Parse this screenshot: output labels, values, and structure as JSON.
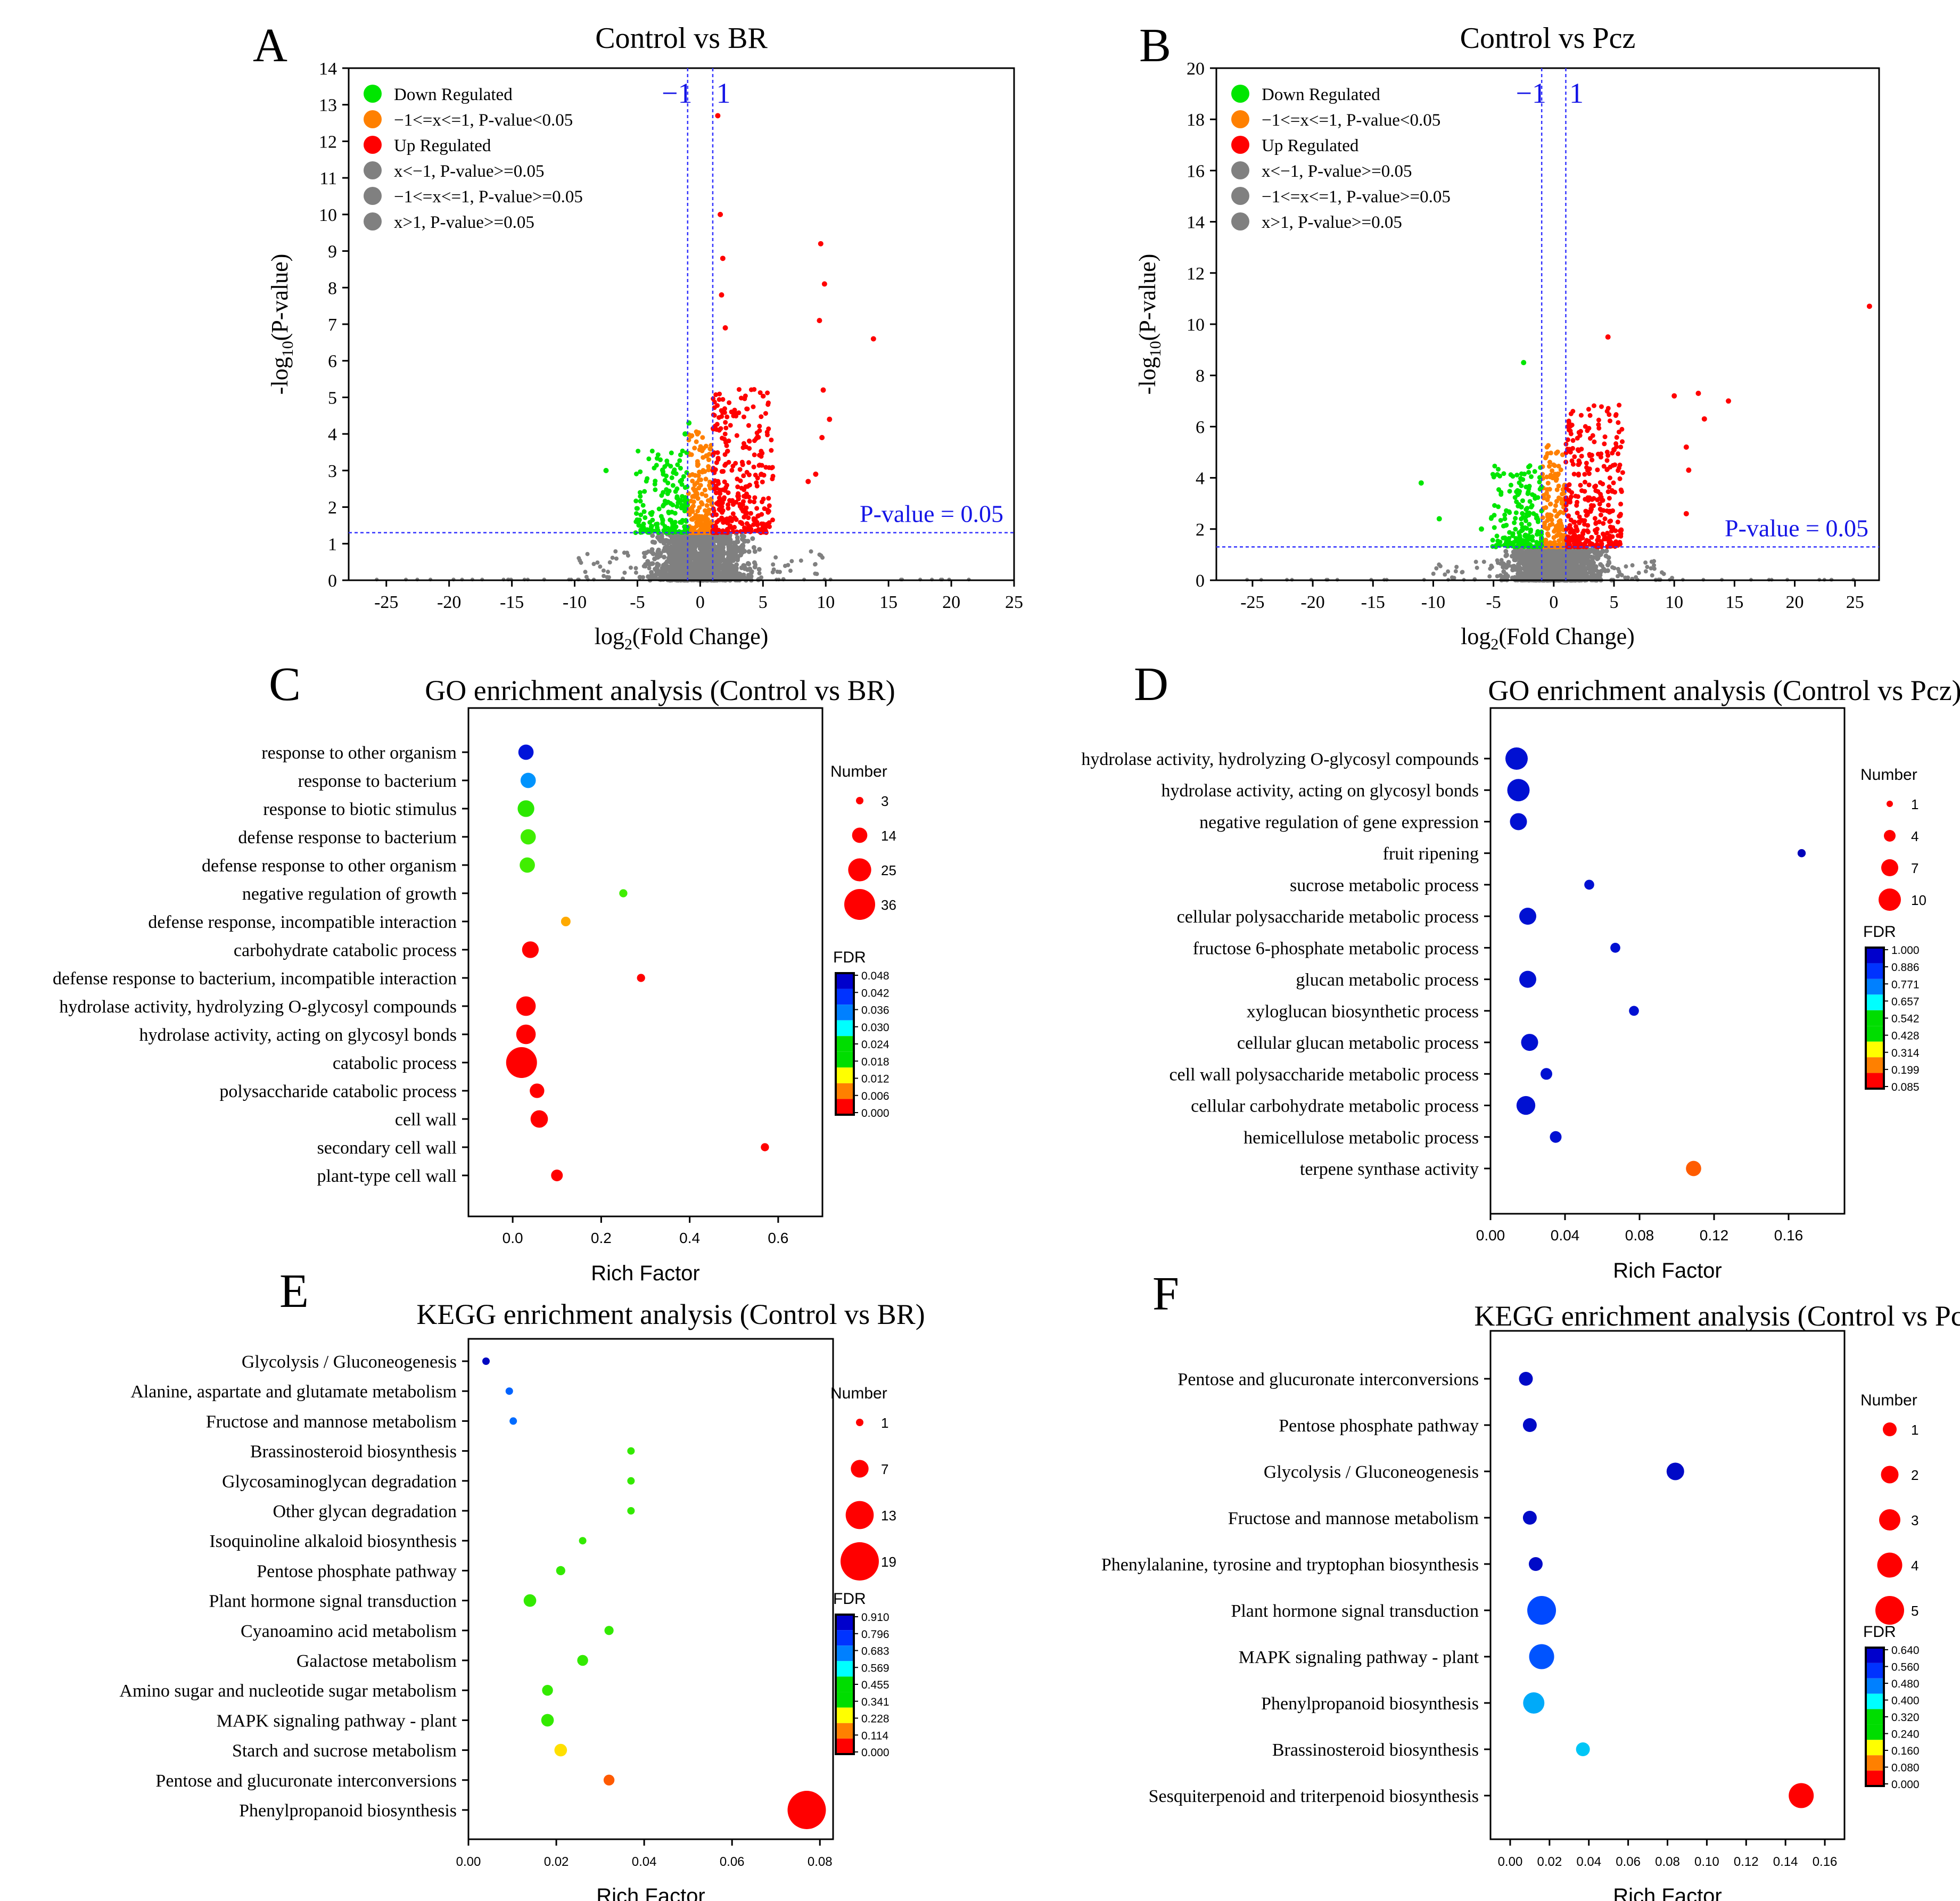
{
  "chart_data": [
    {
      "panel": "A",
      "type": "scatter",
      "title": "Control vs BR",
      "xlabel": "log2(Fold Change)",
      "ylabel": "-log10(P-value)",
      "xlim": [
        -28,
        25
      ],
      "ylim": [
        0,
        14
      ],
      "xticks": [
        -25,
        -20,
        -15,
        -10,
        -5,
        0,
        5,
        10,
        15,
        20,
        25
      ],
      "yticks": [
        0,
        1,
        2,
        3,
        4,
        5,
        6,
        7,
        8,
        9,
        10,
        11,
        12,
        13,
        14
      ],
      "vlines": [
        -1,
        1
      ],
      "vline_labels": [
        "−1",
        "1"
      ],
      "hline": 1.301,
      "hline_label": "P-value = 0.05",
      "legend_position": "top-left",
      "legend": [
        {
          "label": "Down Regulated",
          "color": "#00e600"
        },
        {
          "label": "−1<=x<=1, P-value<0.05",
          "color": "#ff8000"
        },
        {
          "label": "Up Regulated",
          "color": "#ff0000"
        },
        {
          "label": "x<−1, P-value>=0.05",
          "color": "#808080"
        },
        {
          "label": "−1<=x<=1, P-value>=0.05",
          "color": "#808080"
        },
        {
          "label": "x>1, P-value>=0.05",
          "color": "#808080"
        }
      ],
      "highlighted_points": [
        {
          "x": 1.4,
          "y": 12.7,
          "group": "up"
        },
        {
          "x": 1.6,
          "y": 10.0,
          "group": "up"
        },
        {
          "x": 9.6,
          "y": 9.2,
          "group": "up"
        },
        {
          "x": 1.8,
          "y": 8.8,
          "group": "up"
        },
        {
          "x": 9.9,
          "y": 8.1,
          "group": "up"
        },
        {
          "x": 1.7,
          "y": 7.8,
          "group": "up"
        },
        {
          "x": 9.5,
          "y": 7.1,
          "group": "up"
        },
        {
          "x": 13.8,
          "y": 6.6,
          "group": "up"
        },
        {
          "x": 2.0,
          "y": 6.9,
          "group": "up"
        },
        {
          "x": 9.8,
          "y": 5.2,
          "group": "up"
        },
        {
          "x": 10.3,
          "y": 4.4,
          "group": "up"
        },
        {
          "x": 9.7,
          "y": 3.9,
          "group": "up"
        },
        {
          "x": 8.6,
          "y": 2.7,
          "group": "up"
        },
        {
          "x": 9.2,
          "y": 2.9,
          "group": "up"
        },
        {
          "x": -0.9,
          "y": 4.3,
          "group": "down"
        },
        {
          "x": -7.5,
          "y": 3.0,
          "group": "down"
        },
        {
          "x": -1.2,
          "y": 4.0,
          "group": "down"
        },
        {
          "x": 0.5,
          "y": 3.4,
          "group": "mid"
        }
      ]
    },
    {
      "panel": "B",
      "type": "scatter",
      "title": "Control vs Pcz",
      "xlabel": "log2(Fold Change)",
      "ylabel": "-log10(P-value)",
      "xlim": [
        -28,
        27
      ],
      "ylim": [
        0,
        20
      ],
      "xticks": [
        -25,
        -20,
        -15,
        -10,
        -5,
        0,
        5,
        10,
        15,
        20,
        25
      ],
      "yticks": [
        0,
        2,
        4,
        6,
        8,
        10,
        12,
        14,
        16,
        18,
        20
      ],
      "vlines": [
        -1,
        1
      ],
      "vline_labels": [
        "−1",
        "1"
      ],
      "hline": 1.301,
      "hline_label": "P-value = 0.05",
      "legend_position": "top-left",
      "legend": [
        {
          "label": "Down Regulated",
          "color": "#00e600"
        },
        {
          "label": "−1<=x<=1, P-value<0.05",
          "color": "#ff8000"
        },
        {
          "label": "Up Regulated",
          "color": "#ff0000"
        },
        {
          "label": "x<−1, P-value>=0.05",
          "color": "#808080"
        },
        {
          "label": "−1<=x<=1, P-value>=0.05",
          "color": "#808080"
        },
        {
          "label": "x>1, P-value>=0.05",
          "color": "#808080"
        }
      ],
      "highlighted_points": [
        {
          "x": 26.2,
          "y": 10.7,
          "group": "up"
        },
        {
          "x": 12.0,
          "y": 7.3,
          "group": "up"
        },
        {
          "x": 14.5,
          "y": 7.0,
          "group": "up"
        },
        {
          "x": 10.0,
          "y": 7.2,
          "group": "up"
        },
        {
          "x": 12.5,
          "y": 6.3,
          "group": "up"
        },
        {
          "x": 11.0,
          "y": 5.2,
          "group": "up"
        },
        {
          "x": 4.5,
          "y": 9.5,
          "group": "up"
        },
        {
          "x": 11.2,
          "y": 4.3,
          "group": "up"
        },
        {
          "x": 5.0,
          "y": 5.1,
          "group": "up"
        },
        {
          "x": 11.0,
          "y": 2.6,
          "group": "up"
        },
        {
          "x": -2.5,
          "y": 8.5,
          "group": "down"
        },
        {
          "x": -11.0,
          "y": 3.8,
          "group": "down"
        },
        {
          "x": -9.5,
          "y": 2.4,
          "group": "down"
        },
        {
          "x": -6.0,
          "y": 2.0,
          "group": "down"
        }
      ]
    },
    {
      "panel": "C",
      "type": "scatter",
      "title": "GO enrichment analysis (Control vs BR)",
      "xlabel": "Rich Factor",
      "ylabel": "",
      "xlim": [
        -0.1,
        0.7
      ],
      "xticks": [
        "0.0",
        "0.2",
        "0.4",
        "0.6"
      ],
      "categories": [
        "response to other organism",
        "response to bacterium",
        "response to biotic stimulus",
        "defense response to bacterium",
        "defense response to other organism",
        "negative regulation of growth",
        "defense response, incompatible interaction",
        "carbohydrate catabolic process",
        "defense response to bacterium, incompatible interaction",
        "hydrolase activity, hydrolyzing O-glycosyl compounds",
        "hydrolase activity, acting on glycosyl bonds",
        "catabolic process",
        "polysaccharide catabolic process",
        "cell wall",
        "secondary cell wall",
        "plant-type cell wall"
      ],
      "rich_factor": [
        0.03,
        0.035,
        0.03,
        0.035,
        0.033,
        0.25,
        0.12,
        0.04,
        0.29,
        0.03,
        0.03,
        0.02,
        0.055,
        0.06,
        0.57,
        0.1
      ],
      "number": [
        14,
        14,
        16,
        14,
        14,
        4,
        6,
        16,
        4,
        20,
        20,
        36,
        13,
        17,
        4,
        9
      ],
      "fdr": [
        0.045,
        0.035,
        0.022,
        0.021,
        0.021,
        0.021,
        0.008,
        0.0,
        0.0,
        0.0,
        0.0,
        0.0,
        0.0,
        0.0,
        0.0,
        0.0
      ],
      "size_legend_title": "Number",
      "size_legend": [
        3,
        14,
        25,
        36
      ],
      "color_legend_title": "FDR",
      "color_ticks": [
        "0.048",
        "0.042",
        "0.036",
        "0.030",
        "0.024",
        "0.018",
        "0.012",
        "0.006",
        "0.000"
      ]
    },
    {
      "panel": "D",
      "type": "scatter",
      "title": "GO enrichment analysis (Control vs Pcz)",
      "xlabel": "Rich Factor",
      "ylabel": "",
      "xlim": [
        0.0,
        0.19
      ],
      "xticks": [
        "0.00",
        "0.04",
        "0.08",
        "0.12",
        "0.16"
      ],
      "categories": [
        "hydrolase activity, hydrolyzing O-glycosyl compounds",
        "hydrolase activity, acting on glycosyl bonds",
        "negative regulation of gene expression",
        "fruit ripening",
        "sucrose metabolic process",
        "cellular polysaccharide metabolic process",
        "fructose 6-phosphate metabolic process",
        "glucan metabolic process",
        "xyloglucan biosynthetic process",
        "cellular glucan metabolic process",
        "cell wall polysaccharide metabolic process",
        "cellular carbohydrate metabolic process",
        "hemicellulose metabolic process",
        "terpene synthase activity"
      ],
      "rich_factor": [
        0.014,
        0.015,
        0.015,
        0.167,
        0.053,
        0.02,
        0.067,
        0.02,
        0.077,
        0.021,
        0.03,
        0.019,
        0.035,
        0.109
      ],
      "number": [
        10,
        10,
        7,
        2,
        3,
        7,
        3,
        7,
        3,
        7,
        4,
        8,
        4,
        6
      ],
      "fdr": [
        0.95,
        0.95,
        0.95,
        0.99,
        0.95,
        0.95,
        0.95,
        0.95,
        0.95,
        0.95,
        0.95,
        0.95,
        0.95,
        0.09
      ],
      "size_legend_title": "Number",
      "size_legend": [
        1,
        4,
        7,
        10
      ],
      "color_legend_title": "FDR",
      "color_ticks": [
        "1.000",
        "0.886",
        "0.771",
        "0.657",
        "0.542",
        "0.428",
        "0.314",
        "0.199",
        "0.085"
      ]
    },
    {
      "panel": "E",
      "type": "scatter",
      "title": "KEGG enrichment analysis (Control vs BR)",
      "xlabel": "Rich Factor",
      "ylabel": "",
      "xlim": [
        0.0,
        0.083
      ],
      "xticks": [
        "0.00",
        "0.02",
        "0.04",
        "0.06",
        "0.08"
      ],
      "categories": [
        "Glycolysis / Gluconeogenesis",
        "Alanine, aspartate and glutamate metabolism",
        "Fructose and mannose metabolism",
        "Brassinosteroid biosynthesis",
        "Glycosaminoglycan degradation",
        "Other glycan degradation",
        "Isoquinoline alkaloid biosynthesis",
        "Pentose phosphate pathway",
        "Plant hormone signal transduction",
        "Cyanoamino acid metabolism",
        "Galactose metabolism",
        "Amino sugar and nucleotide sugar metabolism",
        "MAPK signaling pathway - plant",
        "Starch and sucrose metabolism",
        "Pentose and glucuronate interconversions",
        "Phenylpropanoid biosynthesis"
      ],
      "rich_factor": [
        0.004,
        0.0093,
        0.0102,
        0.037,
        0.037,
        0.037,
        0.026,
        0.021,
        0.014,
        0.032,
        0.026,
        0.018,
        0.018,
        0.021,
        0.032,
        0.077
      ],
      "number": [
        1,
        1,
        1,
        1,
        1,
        1,
        1,
        2,
        4,
        2,
        3,
        3,
        4,
        4,
        3,
        19
      ],
      "fdr": [
        0.89,
        0.72,
        0.71,
        0.41,
        0.41,
        0.41,
        0.41,
        0.41,
        0.41,
        0.41,
        0.41,
        0.41,
        0.41,
        0.2,
        0.08,
        0.0
      ],
      "size_legend_title": "Number",
      "size_legend": [
        1,
        7,
        13,
        19
      ],
      "color_legend_title": "FDR",
      "color_ticks": [
        "0.910",
        "0.796",
        "0.683",
        "0.569",
        "0.455",
        "0.341",
        "0.228",
        "0.114",
        "0.000"
      ]
    },
    {
      "panel": "F",
      "type": "scatter",
      "title": "KEGG enrichment analysis (Control vs Pcz)",
      "xlabel": "Rich Factor",
      "ylabel": "",
      "xlim": [
        -0.01,
        0.17
      ],
      "xticks": [
        "0.00",
        "0.02",
        "0.04",
        "0.06",
        "0.08",
        "0.10",
        "0.12",
        "0.14",
        "0.16"
      ],
      "categories": [
        "Pentose and glucuronate interconversions",
        "Pentose phosphate pathway",
        "Glycolysis / Gluconeogenesis",
        "Fructose and mannose metabolism",
        "Phenylalanine, tyrosine and tryptophan biosynthesis",
        "Plant hormone signal transduction",
        "MAPK signaling pathway - plant",
        "Phenylpropanoid biosynthesis",
        "Brassinosteroid biosynthesis",
        "Sesquiterpenoid and triterpenoid biosynthesis"
      ],
      "rich_factor": [
        0.008,
        0.01,
        0.084,
        0.01,
        0.013,
        0.016,
        0.016,
        0.012,
        0.037,
        0.148
      ],
      "number": [
        1,
        1,
        2,
        1,
        1,
        5,
        4,
        3,
        1,
        4
      ],
      "fdr": [
        0.62,
        0.62,
        0.62,
        0.62,
        0.62,
        0.53,
        0.52,
        0.45,
        0.43,
        0.0
      ],
      "size_legend_title": "Number",
      "size_legend": [
        1,
        2,
        3,
        4,
        5
      ],
      "color_legend_title": "FDR",
      "color_ticks": [
        "0.640",
        "0.560",
        "0.480",
        "0.400",
        "0.320",
        "0.240",
        "0.160",
        "0.080",
        "0.000"
      ]
    }
  ]
}
